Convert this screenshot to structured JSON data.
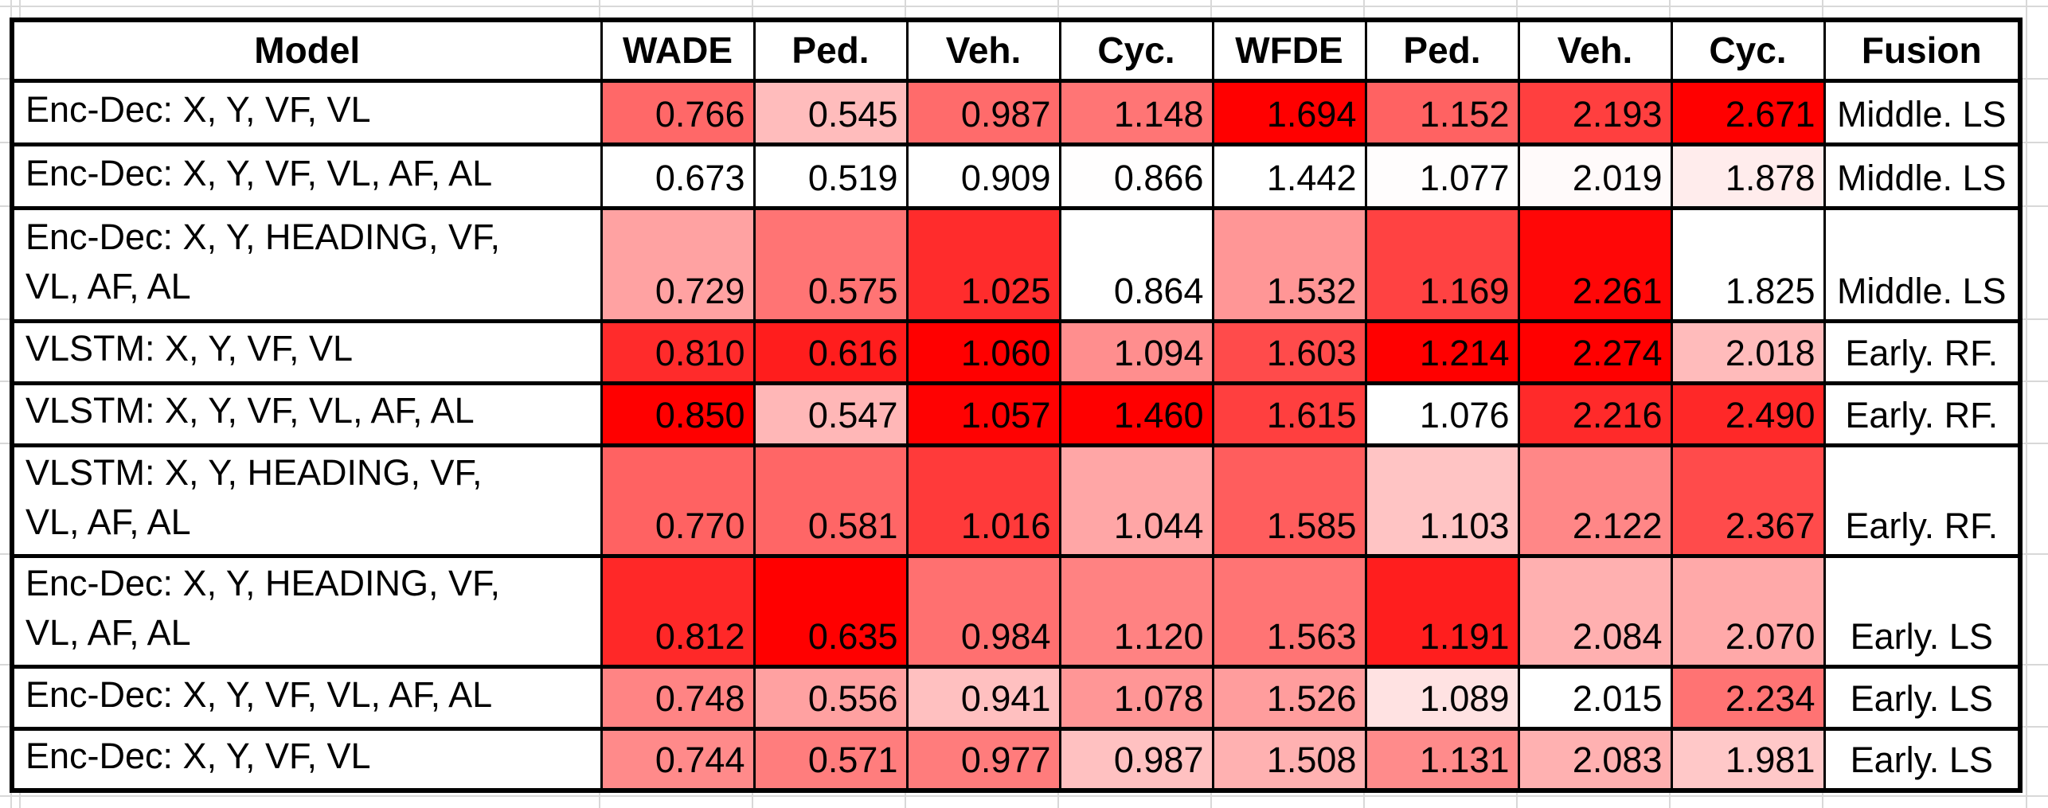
{
  "chart_data": {
    "type": "heatmap",
    "title": "",
    "columns": [
      "Model",
      "WADE",
      "Ped.",
      "Veh.",
      "Cyc.",
      "WFDE",
      "Ped.",
      "Veh.",
      "Cyc.",
      "Fusion"
    ],
    "rows": [
      {
        "model_lines": [
          "Enc-Dec: X, Y, VF, VL"
        ],
        "values": [
          0.766,
          0.545,
          0.987,
          1.148,
          1.694,
          1.152,
          2.193,
          2.671
        ],
        "fusion": "Middle. LS"
      },
      {
        "model_lines": [
          "Enc-Dec: X, Y, VF, VL, AF, AL"
        ],
        "values": [
          0.673,
          0.519,
          0.909,
          0.866,
          1.442,
          1.077,
          2.019,
          1.878
        ],
        "fusion": "Middle. LS"
      },
      {
        "model_lines": [
          "Enc-Dec: X, Y, HEADING, VF,",
          "VL, AF, AL"
        ],
        "values": [
          0.729,
          0.575,
          1.025,
          0.864,
          1.532,
          1.169,
          2.261,
          1.825
        ],
        "fusion": "Middle. LS"
      },
      {
        "model_lines": [
          "VLSTM: X, Y, VF, VL"
        ],
        "values": [
          0.81,
          0.616,
          1.06,
          1.094,
          1.603,
          1.214,
          2.274,
          2.018
        ],
        "fusion": "Early. RF."
      },
      {
        "model_lines": [
          "VLSTM: X, Y, VF, VL, AF, AL"
        ],
        "values": [
          0.85,
          0.547,
          1.057,
          1.46,
          1.615,
          1.076,
          2.216,
          2.49
        ],
        "fusion": "Early. RF."
      },
      {
        "model_lines": [
          "VLSTM: X, Y, HEADING, VF,",
          "VL, AF, AL"
        ],
        "values": [
          0.77,
          0.581,
          1.016,
          1.044,
          1.585,
          1.103,
          2.122,
          2.367
        ],
        "fusion": "Early. RF."
      },
      {
        "model_lines": [
          "Enc-Dec: X, Y, HEADING, VF,",
          "VL, AF, AL"
        ],
        "values": [
          0.812,
          0.635,
          0.984,
          1.12,
          1.563,
          1.191,
          2.084,
          2.07
        ],
        "fusion": "Early. LS"
      },
      {
        "model_lines": [
          "Enc-Dec: X, Y, VF, VL, AF, AL"
        ],
        "values": [
          0.748,
          0.556,
          0.941,
          1.078,
          1.526,
          1.089,
          2.015,
          2.234
        ],
        "fusion": "Early. LS"
      },
      {
        "model_lines": [
          "Enc-Dec: X, Y, VF, VL"
        ],
        "values": [
          0.744,
          0.571,
          0.977,
          0.987,
          1.508,
          1.131,
          2.083,
          1.981
        ],
        "fusion": "Early. LS"
      }
    ],
    "value_format": "3-decimals",
    "heat_scale": {
      "scope": "per-column",
      "min_color": "#FFFFFF",
      "max_color": "#FF0000",
      "note": "white = column minimum, red = column maximum"
    },
    "layout_hints": {
      "grid": "faint sheet gridlines outside table",
      "legend": "none"
    }
  },
  "colors": {
    "table_border": "#000000",
    "sheet_gridline": "#D8D8D8",
    "text": "#000000",
    "cell_background_default": "#FFFFFF"
  }
}
